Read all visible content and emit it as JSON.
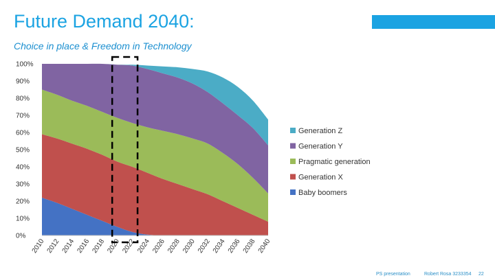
{
  "header": {
    "title": "Future Demand 2040:",
    "subtitle": "Choice in place & Freedom in Technology",
    "accent_color": "#1ba3e2"
  },
  "chart_data": {
    "type": "area",
    "stacked": true,
    "percent": true,
    "x": [
      2010,
      2012,
      2014,
      2016,
      2018,
      2020,
      2022,
      2024,
      2026,
      2028,
      2030,
      2032,
      2034,
      2036,
      2038,
      2040
    ],
    "x_tick_labels": [
      "2010",
      "2012",
      "2014",
      "2016",
      "2018",
      "2020",
      "2022",
      "2024",
      "2026",
      "2028",
      "2030",
      "2032",
      "2034",
      "2036",
      "2038",
      "2040"
    ],
    "y_tick_labels": [
      "0%",
      "10%",
      "20%",
      "30%",
      "40%",
      "50%",
      "60%",
      "70%",
      "80%",
      "90%",
      "100%"
    ],
    "ylim": [
      0,
      100
    ],
    "series": [
      {
        "name": "Baby boomers",
        "color": "#4472c4",
        "values": [
          22,
          19,
          15.5,
          12,
          8.5,
          5,
          2,
          0.5,
          0,
          0,
          0,
          0,
          0,
          0,
          0,
          0
        ]
      },
      {
        "name": "Generation X",
        "color": "#c0504d",
        "values": [
          37,
          37.5,
          38,
          38.5,
          38.5,
          38,
          38,
          36,
          33,
          30,
          27,
          24,
          20,
          16,
          12,
          8
        ]
      },
      {
        "name": "Pragmatic generation",
        "color": "#9bbb59",
        "values": [
          26,
          25.5,
          25,
          25,
          25,
          25.5,
          25.5,
          26.5,
          28,
          29,
          29.5,
          29.5,
          28,
          25.5,
          21.5,
          16.5
        ]
      },
      {
        "name": "Generation Y",
        "color": "#8064a2",
        "values": [
          15,
          18,
          21.5,
          24.5,
          28,
          31,
          33.5,
          34,
          33.5,
          33,
          32,
          30,
          29,
          28.5,
          29,
          28
        ]
      },
      {
        "name": "Generation Z",
        "color": "#4bacc6",
        "values": [
          0,
          0,
          0,
          0,
          0,
          0,
          0.5,
          2,
          4,
          6,
          8.5,
          12,
          15,
          16.5,
          16,
          15
        ]
      }
    ],
    "legend": [
      "Generation Z",
      "Generation Y",
      "Pragmatic generation",
      "Generation X",
      "Baby boomers"
    ],
    "legend_position": "right",
    "annotation": "dashed box highlighting 2020-2022",
    "highlight_range": [
      2019.5,
      2022.5
    ]
  },
  "footer": {
    "left": "PS presentation",
    "author": "Robert Rosa 3233354",
    "page": "22"
  }
}
